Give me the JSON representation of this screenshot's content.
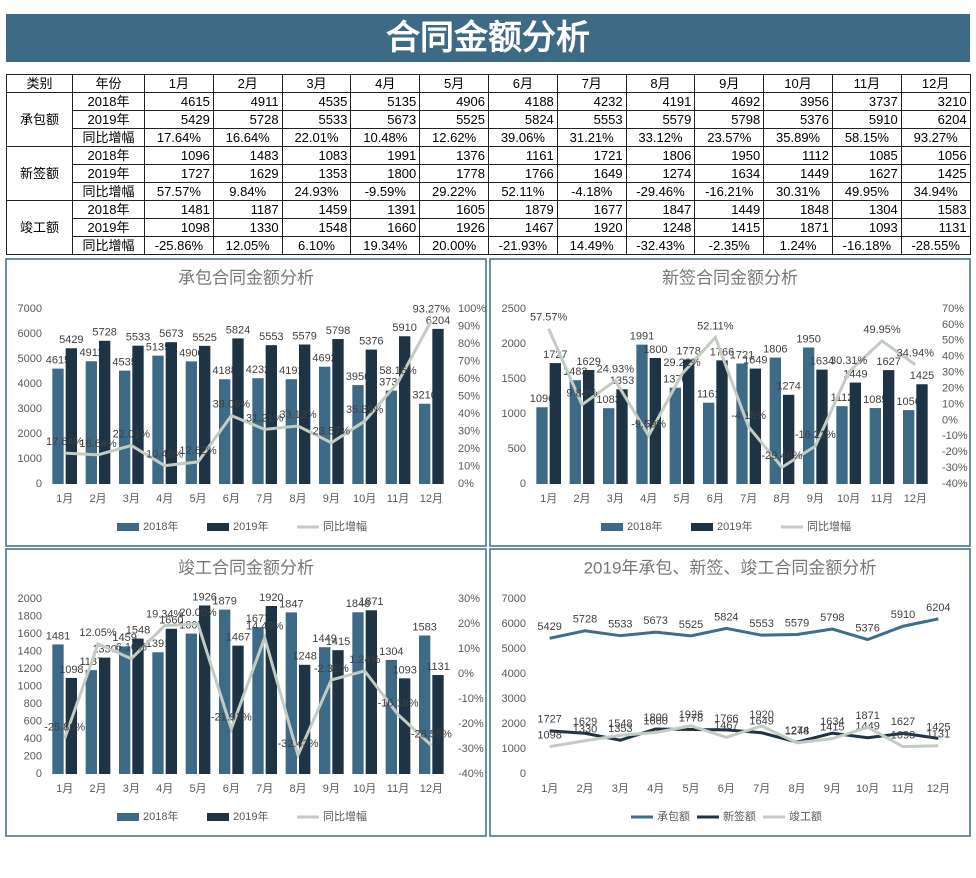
{
  "header": {
    "title": "合同金额分析"
  },
  "table": {
    "header": [
      "类别",
      "年份",
      "1月",
      "2月",
      "3月",
      "4月",
      "5月",
      "6月",
      "7月",
      "8月",
      "9月",
      "10月",
      "11月",
      "12月"
    ],
    "groups": [
      {
        "name": "承包额",
        "rows": [
          {
            "label": "2018年",
            "cells": [
              4615,
              4911,
              4535,
              5135,
              4906,
              4188,
              4232,
              4191,
              4692,
              3956,
              3737,
              3210
            ]
          },
          {
            "label": "2019年",
            "cells": [
              5429,
              5728,
              5533,
              5673,
              5525,
              5824,
              5553,
              5579,
              5798,
              5376,
              5910,
              6204
            ]
          },
          {
            "label": "同比增幅",
            "cells": [
              "17.64%",
              "16.64%",
              "22.01%",
              "10.48%",
              "12.62%",
              "39.06%",
              "31.21%",
              "33.12%",
              "23.57%",
              "35.89%",
              "58.15%",
              "93.27%"
            ]
          }
        ]
      },
      {
        "name": "新签额",
        "rows": [
          {
            "label": "2018年",
            "cells": [
              1096,
              1483,
              1083,
              1991,
              1376,
              1161,
              1721,
              1806,
              1950,
              1112,
              1085,
              1056
            ]
          },
          {
            "label": "2019年",
            "cells": [
              1727,
              1629,
              1353,
              1800,
              1778,
              1766,
              1649,
              1274,
              1634,
              1449,
              1627,
              1425
            ]
          },
          {
            "label": "同比增幅",
            "cells": [
              "57.57%",
              "9.84%",
              "24.93%",
              "-9.59%",
              "29.22%",
              "52.11%",
              "-4.18%",
              "-29.46%",
              "-16.21%",
              "30.31%",
              "49.95%",
              "34.94%"
            ]
          }
        ]
      },
      {
        "name": "竣工额",
        "rows": [
          {
            "label": "2018年",
            "cells": [
              1481,
              1187,
              1459,
              1391,
              1605,
              1879,
              1677,
              1847,
              1449,
              1848,
              1304,
              1583
            ]
          },
          {
            "label": "2019年",
            "cells": [
              1098,
              1330,
              1548,
              1660,
              1926,
              1467,
              1920,
              1248,
              1415,
              1871,
              1093,
              1131
            ]
          },
          {
            "label": "同比增幅",
            "cells": [
              "-25.86%",
              "12.05%",
              "6.10%",
              "19.34%",
              "20.00%",
              "-21.93%",
              "14.49%",
              "-32.43%",
              "-2.35%",
              "1.24%",
              "-16.18%",
              "-28.55%"
            ]
          }
        ]
      }
    ]
  },
  "chart_data": [
    {
      "type": "combo",
      "title": "承包合同金额分析",
      "categories": [
        "1月",
        "2月",
        "3月",
        "4月",
        "5月",
        "6月",
        "7月",
        "8月",
        "9月",
        "10月",
        "11月",
        "12月"
      ],
      "ylim": [
        0,
        7000
      ],
      "yticks": [
        0,
        1000,
        2000,
        3000,
        4000,
        5000,
        6000,
        7000
      ],
      "y2lim": [
        0,
        100
      ],
      "y2ticks": [
        {
          "value": 0,
          "label": "0%"
        },
        {
          "value": 10,
          "label": "10%"
        },
        {
          "value": 20,
          "label": "20%"
        },
        {
          "value": 30,
          "label": "30%"
        },
        {
          "value": 40,
          "label": "40%"
        },
        {
          "value": 50,
          "label": "50%"
        },
        {
          "value": 60,
          "label": "60%"
        },
        {
          "value": 70,
          "label": "70%"
        },
        {
          "value": 80,
          "label": "80%"
        },
        {
          "value": 90,
          "label": "90%"
        },
        {
          "value": 100,
          "label": "100%"
        }
      ],
      "legend": "bottom",
      "series": [
        {
          "name": "2018年",
          "type": "bar",
          "color": "#3c6a87",
          "values": [
            4615,
            4911,
            4535,
            5135,
            4906,
            4188,
            4232,
            4191,
            4692,
            3956,
            3737,
            3210
          ]
        },
        {
          "name": "2019年",
          "type": "bar",
          "color": "#1e3344",
          "values": [
            5429,
            5728,
            5533,
            5673,
            5525,
            5824,
            5553,
            5579,
            5798,
            5376,
            5910,
            6204
          ]
        },
        {
          "name": "同比增幅",
          "type": "line",
          "axis": "y2",
          "color": "#c3ccc2",
          "values": [
            17.64,
            16.64,
            22.01,
            10.48,
            12.62,
            39.06,
            31.21,
            33.12,
            23.57,
            35.89,
            58.15,
            93.27
          ],
          "value_labels": [
            "17.64%",
            "16.64%",
            "22.01%",
            "10.48%",
            "12.62%",
            "39.06%",
            "31.21%",
            "33.12%",
            "23.57%",
            "35.89%",
            "58.15%",
            "93.27%"
          ]
        }
      ]
    },
    {
      "type": "combo",
      "title": "新签合同金额分析",
      "categories": [
        "1月",
        "2月",
        "3月",
        "4月",
        "5月",
        "6月",
        "7月",
        "8月",
        "9月",
        "10月",
        "11月",
        "12月"
      ],
      "ylim": [
        0,
        2500
      ],
      "yticks": [
        0,
        500,
        1000,
        1500,
        2000,
        2500
      ],
      "y2lim": [
        -40,
        70
      ],
      "y2ticks": [
        {
          "value": -40,
          "label": "-40%"
        },
        {
          "value": -30,
          "label": "-30%"
        },
        {
          "value": -20,
          "label": "-20%"
        },
        {
          "value": -10,
          "label": "-10%"
        },
        {
          "value": 0,
          "label": "0%"
        },
        {
          "value": 10,
          "label": "10%"
        },
        {
          "value": 20,
          "label": "20%"
        },
        {
          "value": 30,
          "label": "30%"
        },
        {
          "value": 40,
          "label": "40%"
        },
        {
          "value": 50,
          "label": "50%"
        },
        {
          "value": 60,
          "label": "60%"
        },
        {
          "value": 70,
          "label": "70%"
        }
      ],
      "legend": "bottom",
      "series": [
        {
          "name": "2018年",
          "type": "bar",
          "color": "#3c6a87",
          "values": [
            1096,
            1483,
            1083,
            1991,
            1376,
            1161,
            1721,
            1806,
            1950,
            1112,
            1085,
            1056
          ]
        },
        {
          "name": "2019年",
          "type": "bar",
          "color": "#1e3344",
          "values": [
            1727,
            1629,
            1353,
            1800,
            1778,
            1766,
            1649,
            1274,
            1634,
            1449,
            1627,
            1425
          ]
        },
        {
          "name": "同比增幅",
          "type": "line",
          "axis": "y2",
          "color": "#c3ccc2",
          "values": [
            57.57,
            9.84,
            24.93,
            -9.59,
            29.22,
            52.11,
            -4.18,
            -29.46,
            -16.21,
            30.31,
            49.95,
            34.94
          ],
          "value_labels": [
            "57.57%",
            "9.84%",
            "24.93%",
            "-9.59%",
            "29.22%",
            "52.11%",
            "-4.18%",
            "-29.46%",
            "-16.21%",
            "30.31%",
            "49.95%",
            "34.94%"
          ]
        }
      ]
    },
    {
      "type": "combo",
      "title": "竣工合同金额分析",
      "categories": [
        "1月",
        "2月",
        "3月",
        "4月",
        "5月",
        "6月",
        "7月",
        "8月",
        "9月",
        "10月",
        "11月",
        "12月"
      ],
      "ylim": [
        0,
        2000
      ],
      "yticks": [
        0,
        200,
        400,
        600,
        800,
        1000,
        1200,
        1400,
        1600,
        1800,
        2000
      ],
      "y2lim": [
        -40,
        30
      ],
      "y2ticks": [
        {
          "value": -40,
          "label": "-40%"
        },
        {
          "value": -30,
          "label": "-30%"
        },
        {
          "value": -20,
          "label": "-20%"
        },
        {
          "value": -10,
          "label": "-10%"
        },
        {
          "value": 0,
          "label": "0%"
        },
        {
          "value": 10,
          "label": "10%"
        },
        {
          "value": 20,
          "label": "20%"
        },
        {
          "value": 30,
          "label": "30%"
        }
      ],
      "legend": "bottom",
      "series": [
        {
          "name": "2018年",
          "type": "bar",
          "color": "#3c6a87",
          "values": [
            1481,
            1187,
            1459,
            1391,
            1605,
            1879,
            1677,
            1847,
            1449,
            1848,
            1304,
            1583
          ]
        },
        {
          "name": "2019年",
          "type": "bar",
          "color": "#1e3344",
          "values": [
            1098,
            1330,
            1548,
            1660,
            1926,
            1467,
            1920,
            1248,
            1415,
            1871,
            1093,
            1131
          ]
        },
        {
          "name": "同比增幅",
          "type": "line",
          "axis": "y2",
          "color": "#c3ccc2",
          "values": [
            -25.86,
            12.05,
            6.1,
            19.34,
            20.0,
            -21.93,
            14.49,
            -32.43,
            -2.35,
            1.24,
            -16.18,
            -28.55
          ],
          "value_labels": [
            "-25.86%",
            "12.05%",
            "6.10%",
            "19.34%",
            "20.00%",
            "-21.93%",
            "14.49%",
            "-32.43%",
            "-2.35%",
            "1.24%",
            "-16.18%",
            "-28.55%"
          ]
        }
      ]
    },
    {
      "type": "line",
      "title": "2019年承包、新签、竣工合同金额分析",
      "categories": [
        "1月",
        "2月",
        "3月",
        "4月",
        "5月",
        "6月",
        "7月",
        "8月",
        "9月",
        "10月",
        "11月",
        "12月"
      ],
      "ylim": [
        0,
        7000
      ],
      "yticks": [
        0,
        1000,
        2000,
        3000,
        4000,
        5000,
        6000,
        7000
      ],
      "legend": "bottom",
      "series": [
        {
          "name": "承包额",
          "type": "line",
          "color": "#3c6e8e",
          "values": [
            5429,
            5728,
            5533,
            5673,
            5525,
            5824,
            5553,
            5579,
            5798,
            5376,
            5910,
            6204
          ]
        },
        {
          "name": "新签额",
          "type": "line",
          "color": "#1e3344",
          "values": [
            1727,
            1629,
            1353,
            1800,
            1778,
            1766,
            1649,
            1274,
            1634,
            1449,
            1627,
            1425
          ]
        },
        {
          "name": "竣工额",
          "type": "line",
          "color": "#c3ccc2",
          "values": [
            1098,
            1330,
            1548,
            1660,
            1926,
            1467,
            1920,
            1248,
            1415,
            1871,
            1093,
            1131
          ]
        }
      ]
    }
  ]
}
